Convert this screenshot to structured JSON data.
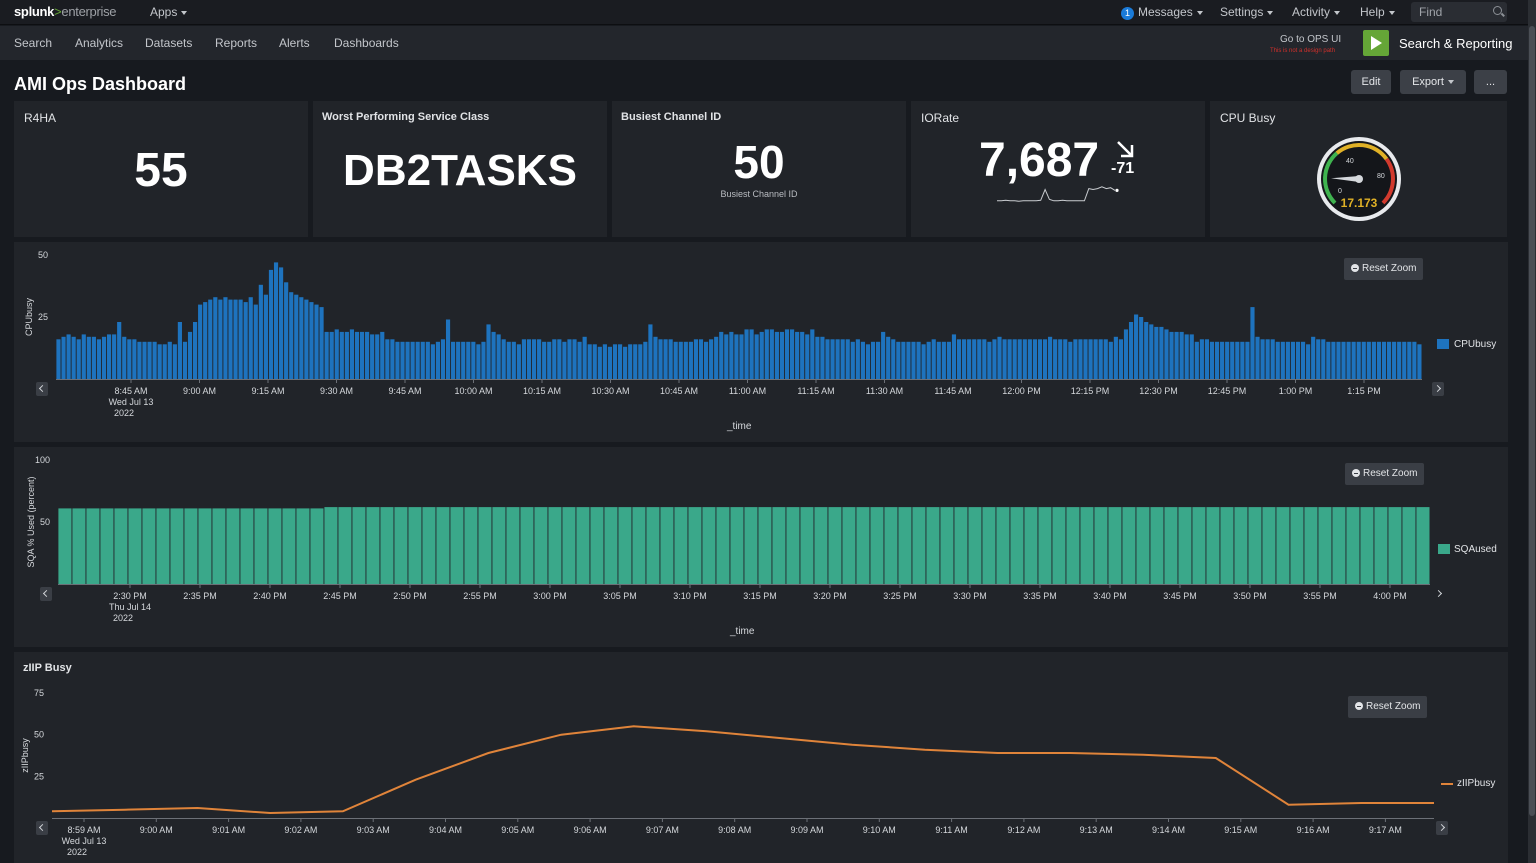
{
  "topbar": {
    "logo_brand": "splunk",
    "logo_gt": ">",
    "logo_product": "enterprise",
    "apps_label": "Apps",
    "messages_count": "1",
    "messages_label": "Messages",
    "settings_label": "Settings",
    "activity_label": "Activity",
    "help_label": "Help",
    "find_placeholder": "Find"
  },
  "appbar": {
    "nav": [
      "Search",
      "Analytics",
      "Datasets",
      "Reports",
      "Alerts",
      "Dashboards"
    ],
    "ops_link": "Go to OPS UI",
    "ops_note": "This is not a design path",
    "app_name": "Search & Reporting"
  },
  "dashboard": {
    "title": "AMI Ops Dashboard",
    "edit_label": "Edit",
    "export_label": "Export",
    "more_label": "..."
  },
  "panels": {
    "r4ha": {
      "title": "R4HA",
      "value": "55"
    },
    "worst": {
      "title": "Worst Performing Service Class",
      "value": "DB2TASKS"
    },
    "busiest": {
      "title": "Busiest Channel ID",
      "value": "50",
      "under": "Busiest Channel ID"
    },
    "iorate": {
      "title": "IORate",
      "value": "7,687",
      "delta": "-71",
      "sparkline": [
        0.12,
        0.12,
        0.15,
        0.12,
        0.12,
        0.1,
        0.12,
        0.12,
        0.12,
        0.12,
        0.15,
        0.75,
        0.2,
        0.12,
        0.12,
        0.15,
        0.12,
        0.12,
        0.12,
        0.12,
        0.12,
        0.8,
        0.75,
        0.8,
        0.9,
        0.8,
        0.85,
        0.7
      ]
    },
    "cpubusy": {
      "title": "CPU Busy",
      "value": "17.173",
      "tick_low": "0",
      "tick_mid": "40",
      "tick_high": "80",
      "gauge_max": 100
    }
  },
  "chart_labels": {
    "reset_zoom": "Reset Zoom",
    "xlabel": "_time",
    "zlip_title": "zIIP Busy"
  },
  "chart_data": [
    {
      "type": "bar",
      "ylabel": "CPUbusy",
      "series_name": "CPUbusy",
      "color": "#1e73be",
      "ylim": [
        0,
        50
      ],
      "yticks": [
        "50",
        "25"
      ],
      "x_ticks": [
        "8:45 AM",
        "9:00 AM",
        "9:15 AM",
        "9:30 AM",
        "9:45 AM",
        "10:00 AM",
        "10:15 AM",
        "10:30 AM",
        "10:45 AM",
        "11:00 AM",
        "11:15 AM",
        "11:30 AM",
        "11:45 AM",
        "12:00 PM",
        "12:15 PM",
        "12:30 PM",
        "12:45 PM",
        "1:00 PM",
        "1:15 PM"
      ],
      "x_date_line1": "Wed Jul 13",
      "x_date_line2": "2022",
      "values": [
        16,
        17,
        18,
        17,
        16,
        18,
        17,
        17,
        16,
        17,
        18,
        18,
        23,
        17,
        16,
        16,
        15,
        15,
        15,
        15,
        14,
        14,
        15,
        14,
        23,
        15,
        19,
        23,
        30,
        31,
        32,
        33,
        32,
        33,
        32,
        32,
        32,
        31,
        33,
        30,
        38,
        34,
        44,
        47,
        45,
        39,
        35,
        34,
        33,
        32,
        31,
        30,
        29,
        19,
        19,
        20,
        19,
        19,
        20,
        19,
        19,
        19,
        18,
        18,
        19,
        16,
        16,
        15,
        15,
        15,
        15,
        15,
        15,
        15,
        14,
        15,
        16,
        24,
        15,
        15,
        15,
        15,
        15,
        14,
        15,
        22,
        19,
        18,
        16,
        15,
        15,
        14,
        16,
        16,
        16,
        16,
        15,
        15,
        16,
        16,
        15,
        16,
        16,
        15,
        17,
        14,
        14,
        13,
        14,
        13,
        14,
        14,
        13,
        14,
        14,
        14,
        15,
        22,
        17,
        16,
        16,
        16,
        15,
        15,
        15,
        15,
        16,
        16,
        15,
        16,
        17,
        19,
        18,
        19,
        18,
        18,
        20,
        20,
        18,
        19,
        20,
        20,
        19,
        19,
        20,
        20,
        19,
        19,
        18,
        20,
        17,
        17,
        16,
        16,
        16,
        16,
        16,
        15,
        16,
        15,
        14,
        15,
        15,
        19,
        17,
        16,
        15,
        15,
        15,
        15,
        15,
        14,
        15,
        16,
        15,
        15,
        15,
        18,
        16,
        16,
        16,
        16,
        16,
        16,
        15,
        16,
        17,
        16,
        16,
        16,
        16,
        16,
        16,
        16,
        16,
        16,
        17,
        16,
        16,
        16,
        15,
        16,
        16,
        16,
        16,
        16,
        16,
        16,
        15,
        17,
        16,
        20,
        23,
        26,
        25,
        23,
        22,
        21,
        21,
        20,
        19,
        19,
        19,
        18,
        18,
        15,
        16,
        16,
        15,
        15,
        15,
        15,
        15,
        15,
        15,
        15,
        29,
        17,
        16,
        16,
        16,
        15,
        15,
        15,
        15,
        15,
        15,
        14,
        17,
        16,
        16,
        15,
        15,
        15,
        15,
        15,
        15,
        15,
        15,
        15,
        15,
        15,
        15,
        15,
        15,
        15,
        15,
        15,
        15,
        14
      ]
    },
    {
      "type": "bar",
      "ylabel": "SQA % Used (percent)",
      "series_name": "SQAused",
      "color": "#3aa88a",
      "ylim": [
        0,
        100
      ],
      "yticks": [
        "100",
        "50"
      ],
      "x_ticks": [
        "2:30 PM",
        "2:35 PM",
        "2:40 PM",
        "2:45 PM",
        "2:50 PM",
        "2:55 PM",
        "3:00 PM",
        "3:05 PM",
        "3:10 PM",
        "3:15 PM",
        "3:20 PM",
        "3:25 PM",
        "3:30 PM",
        "3:35 PM",
        "3:40 PM",
        "3:45 PM",
        "3:50 PM",
        "3:55 PM",
        "4:00 PM"
      ],
      "x_date_line1": "Thu Jul 14",
      "x_date_line2": "2022",
      "values": [
        61,
        61,
        61,
        61,
        61,
        61,
        61,
        61,
        61,
        61,
        61,
        61,
        61,
        61,
        61,
        61,
        61,
        61,
        61,
        62,
        62,
        62,
        62,
        62,
        62,
        62,
        62,
        62,
        62,
        62,
        62,
        62,
        62,
        62,
        62,
        62,
        62,
        62,
        62,
        62,
        62,
        62,
        62,
        62,
        62,
        62,
        62,
        62,
        62,
        62,
        62,
        62,
        62,
        62,
        62,
        62,
        62,
        62,
        62,
        62,
        62,
        62,
        62,
        62,
        62,
        62,
        62,
        62,
        62,
        62,
        62,
        62,
        62,
        62,
        62,
        62,
        62,
        62,
        62,
        62,
        62,
        62,
        62,
        62,
        62,
        62,
        62,
        62,
        62,
        62,
        62,
        62,
        62,
        62,
        62,
        62,
        62,
        62
      ]
    },
    {
      "type": "line",
      "title": "zIIP Busy",
      "ylabel": "zIIPbusy",
      "series_name": "zIIPbusy",
      "color": "#e0843a",
      "ylim": [
        0,
        75
      ],
      "yticks": [
        "75",
        "50",
        "25"
      ],
      "x_ticks": [
        "8:59 AM",
        "9:00 AM",
        "9:01 AM",
        "9:02 AM",
        "9:03 AM",
        "9:04 AM",
        "9:05 AM",
        "9:06 AM",
        "9:07 AM",
        "9:08 AM",
        "9:09 AM",
        "9:10 AM",
        "9:11 AM",
        "9:12 AM",
        "9:13 AM",
        "9:14 AM",
        "9:15 AM",
        "9:16 AM",
        "9:17 AM"
      ],
      "x_date_line1": "Wed Jul 13",
      "x_date_line2": "2022",
      "values": [
        4,
        5,
        6,
        3,
        4,
        23,
        39,
        50,
        55,
        52,
        48,
        44,
        41,
        39,
        39,
        38,
        36,
        8,
        9,
        9
      ]
    }
  ]
}
